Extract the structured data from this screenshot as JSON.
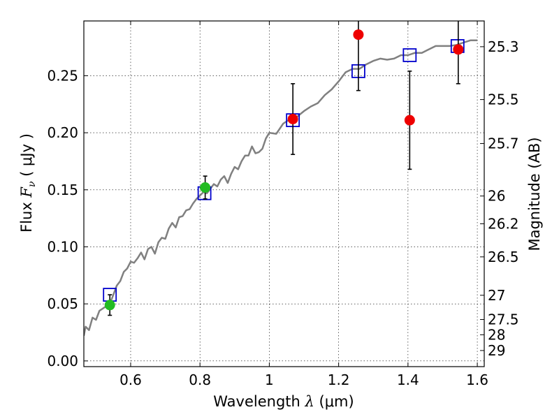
{
  "chart_data": {
    "type": "scatter",
    "title": "",
    "xlabel": {
      "prefix": "Wavelength  ",
      "lambda": "λ",
      "unit": " (μm)"
    },
    "ylabel": {
      "prefix": "Flux  ",
      "sym": "F",
      "sub": "ν",
      "unit": "  ( μJy )"
    },
    "y2label": "Magnitude (AB)",
    "xlim": [
      0.465,
      1.62
    ],
    "ylim": [
      -0.005,
      0.298
    ],
    "grid": true,
    "x_ticks": [
      {
        "value": 0.6,
        "label": "0.6"
      },
      {
        "value": 0.8,
        "label": "0.8"
      },
      {
        "value": 1.0,
        "label": "1"
      },
      {
        "value": 1.2,
        "label": "1.2"
      },
      {
        "value": 1.4,
        "label": "1.4"
      },
      {
        "value": 1.6,
        "label": "1.6"
      }
    ],
    "y_ticks": [
      {
        "value": 0.0,
        "label": "0.00"
      },
      {
        "value": 0.05,
        "label": "0.05"
      },
      {
        "value": 0.1,
        "label": "0.10"
      },
      {
        "value": 0.15,
        "label": "0.15"
      },
      {
        "value": 0.2,
        "label": "0.20"
      },
      {
        "value": 0.25,
        "label": "0.25"
      }
    ],
    "y2_ticks": [
      {
        "mag": 25.3,
        "label": "25.3"
      },
      {
        "mag": 25.5,
        "label": "25.5"
      },
      {
        "mag": 25.7,
        "label": "25.7"
      },
      {
        "mag": 26.0,
        "label": "26"
      },
      {
        "mag": 26.2,
        "label": "26.2"
      },
      {
        "mag": 26.5,
        "label": "26.5"
      },
      {
        "mag": 27.0,
        "label": "27"
      },
      {
        "mag": 27.5,
        "label": "27.5"
      },
      {
        "mag": 28.0,
        "label": "28"
      },
      {
        "mag": 29.0,
        "label": "29"
      }
    ],
    "series": [
      {
        "kind": "line",
        "color": "#808080",
        "x": [
          0.465,
          0.47,
          0.48,
          0.49,
          0.5,
          0.51,
          0.52,
          0.53,
          0.54,
          0.55,
          0.56,
          0.57,
          0.58,
          0.59,
          0.6,
          0.61,
          0.62,
          0.63,
          0.64,
          0.65,
          0.66,
          0.67,
          0.68,
          0.69,
          0.7,
          0.71,
          0.72,
          0.73,
          0.74,
          0.75,
          0.76,
          0.77,
          0.78,
          0.79,
          0.8,
          0.81,
          0.82,
          0.83,
          0.84,
          0.85,
          0.86,
          0.87,
          0.88,
          0.89,
          0.9,
          0.91,
          0.92,
          0.93,
          0.94,
          0.95,
          0.96,
          0.97,
          0.98,
          0.99,
          1.0,
          1.02,
          1.04,
          1.06,
          1.08,
          1.1,
          1.12,
          1.14,
          1.16,
          1.18,
          1.2,
          1.22,
          1.24,
          1.26,
          1.28,
          1.3,
          1.32,
          1.34,
          1.36,
          1.38,
          1.4,
          1.42,
          1.44,
          1.46,
          1.48,
          1.5,
          1.52,
          1.54,
          1.56,
          1.58,
          1.6
        ],
        "y": [
          0.022,
          0.03,
          0.027,
          0.038,
          0.036,
          0.044,
          0.046,
          0.048,
          0.05,
          0.058,
          0.066,
          0.07,
          0.078,
          0.081,
          0.087,
          0.086,
          0.09,
          0.095,
          0.089,
          0.098,
          0.1,
          0.094,
          0.104,
          0.108,
          0.107,
          0.116,
          0.121,
          0.117,
          0.126,
          0.127,
          0.132,
          0.133,
          0.138,
          0.142,
          0.145,
          0.148,
          0.147,
          0.151,
          0.155,
          0.153,
          0.159,
          0.162,
          0.156,
          0.164,
          0.17,
          0.168,
          0.175,
          0.18,
          0.18,
          0.188,
          0.182,
          0.183,
          0.186,
          0.195,
          0.2,
          0.199,
          0.208,
          0.212,
          0.214,
          0.219,
          0.223,
          0.226,
          0.233,
          0.238,
          0.245,
          0.253,
          0.256,
          0.256,
          0.26,
          0.263,
          0.265,
          0.264,
          0.265,
          0.268,
          0.268,
          0.27,
          0.27,
          0.273,
          0.276,
          0.276,
          0.276,
          0.277,
          0.279,
          0.281,
          0.281
        ]
      },
      {
        "kind": "square",
        "color": "#0000cc",
        "x": [
          0.54,
          0.813,
          1.068,
          1.257,
          1.405,
          1.543
        ],
        "y": [
          0.058,
          0.147,
          0.211,
          0.254,
          0.268,
          0.276
        ]
      },
      {
        "kind": "point",
        "color": "#22bb22",
        "x": [
          0.54,
          0.815
        ],
        "y": [
          0.049,
          0.152
        ],
        "yerr": [
          0.009,
          0.01
        ]
      },
      {
        "kind": "point",
        "color": "#ee0000",
        "x": [
          1.068,
          1.257,
          1.405,
          1.545
        ],
        "y": [
          0.212,
          0.286,
          0.211,
          0.273
        ],
        "yerr": [
          0.031,
          0.049,
          0.043,
          0.03
        ]
      }
    ]
  }
}
